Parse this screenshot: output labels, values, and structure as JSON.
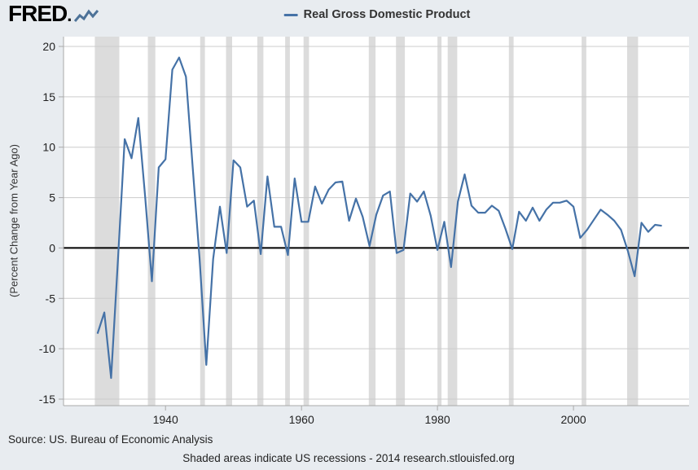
{
  "logo": {
    "text": "FRED",
    "mark": "."
  },
  "legend": {
    "label": "Real Gross Domestic Product"
  },
  "footer": {
    "source": "Source: US. Bureau of Economic Analysis",
    "note": "Shaded areas indicate US recessions - 2014 research.stlouisfed.org"
  },
  "chart_data": {
    "type": "line",
    "title": "Real Gross Domestic Product",
    "xlabel": "",
    "ylabel": "(Percent Change from Year Ago)",
    "ylim": [
      -15,
      20
    ],
    "xlim": [
      1925,
      2017
    ],
    "yticks": [
      -15,
      -10,
      -5,
      0,
      5,
      10,
      15,
      20
    ],
    "xticks": [
      1940,
      1960,
      1980,
      2000
    ],
    "grid": true,
    "legend_position": "top-center",
    "line_color": "#4572a7",
    "recession_color": "#dcdcdc",
    "grid_color": "#cccccc",
    "zero_line_color": "#000000",
    "axis_color": "#aaaaaa",
    "tick_text_color": "#222222",
    "x": [
      1930,
      1931,
      1932,
      1933,
      1934,
      1935,
      1936,
      1937,
      1938,
      1939,
      1940,
      1941,
      1942,
      1943,
      1944,
      1945,
      1946,
      1947,
      1948,
      1949,
      1950,
      1951,
      1952,
      1953,
      1954,
      1955,
      1956,
      1957,
      1958,
      1959,
      1960,
      1961,
      1962,
      1963,
      1964,
      1965,
      1966,
      1967,
      1968,
      1969,
      1970,
      1971,
      1972,
      1973,
      1974,
      1975,
      1976,
      1977,
      1978,
      1979,
      1980,
      1981,
      1982,
      1983,
      1984,
      1985,
      1986,
      1987,
      1988,
      1989,
      1990,
      1991,
      1992,
      1993,
      1994,
      1995,
      1996,
      1997,
      1998,
      1999,
      2000,
      2001,
      2002,
      2003,
      2004,
      2005,
      2006,
      2007,
      2008,
      2009,
      2010,
      2011,
      2012,
      2013
    ],
    "values": [
      -8.5,
      -6.4,
      -12.9,
      -1.2,
      10.8,
      8.9,
      12.9,
      5.1,
      -3.3,
      8.0,
      8.8,
      17.7,
      18.9,
      17.0,
      8.0,
      -1.0,
      -11.6,
      -1.1,
      4.1,
      -0.5,
      8.7,
      8.0,
      4.1,
      4.7,
      -0.6,
      7.1,
      2.1,
      2.1,
      -0.7,
      6.9,
      2.6,
      2.6,
      6.1,
      4.4,
      5.8,
      6.5,
      6.6,
      2.7,
      4.9,
      3.1,
      0.2,
      3.3,
      5.2,
      5.6,
      -0.5,
      -0.2,
      5.4,
      4.6,
      5.6,
      3.2,
      -0.2,
      2.6,
      -1.9,
      4.6,
      7.3,
      4.2,
      3.5,
      3.5,
      4.2,
      3.7,
      1.9,
      -0.1,
      3.6,
      2.7,
      4.0,
      2.7,
      3.8,
      4.5,
      4.5,
      4.7,
      4.1,
      1.0,
      1.8,
      2.8,
      3.8,
      3.3,
      2.7,
      1.8,
      -0.3,
      -2.8,
      2.5,
      1.6,
      2.3,
      2.2
    ],
    "recessions": [
      [
        1929.6,
        1933.2
      ],
      [
        1937.4,
        1938.5
      ],
      [
        1945.1,
        1945.8
      ],
      [
        1948.9,
        1949.8
      ],
      [
        1953.5,
        1954.4
      ],
      [
        1957.6,
        1958.3
      ],
      [
        1960.3,
        1961.1
      ],
      [
        1969.9,
        1970.9
      ],
      [
        1973.9,
        1975.2
      ],
      [
        1980.0,
        1980.6
      ],
      [
        1981.5,
        1982.9
      ],
      [
        1990.5,
        1991.2
      ],
      [
        2001.2,
        2001.9
      ],
      [
        2007.9,
        2009.5
      ]
    ]
  }
}
